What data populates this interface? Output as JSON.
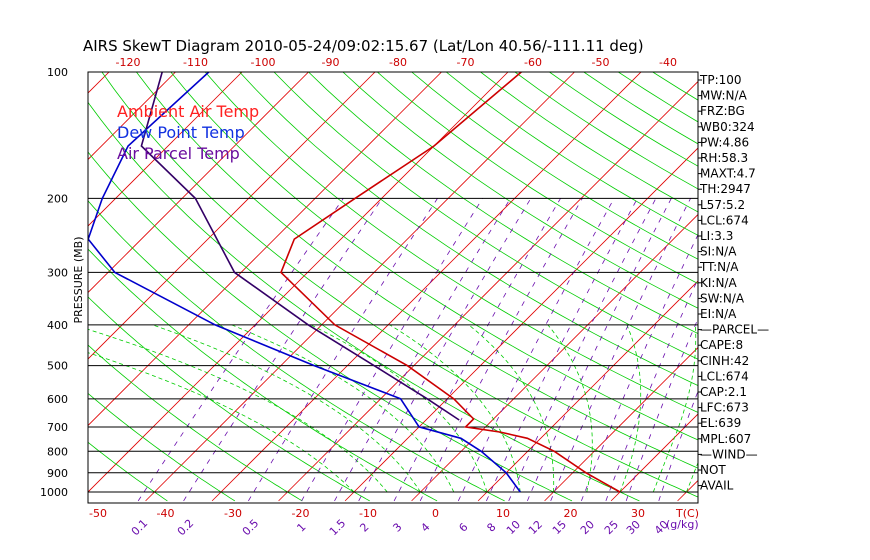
{
  "chart_data": {
    "type": "line",
    "title": "AIRS SkewT Diagram 2010-05-24/09:02:15.67 (Lat/Lon 40.56/-111.11 deg)",
    "ylabel": "PRESSURE (MB)",
    "xlabel": "T(C)",
    "mixing_ratio_label": "(g/kg)",
    "pressure_ticks": [
      "100",
      "200",
      "300",
      "400",
      "500",
      "600",
      "700",
      "800",
      "900",
      "1000"
    ],
    "pressure_levels": [
      100,
      200,
      300,
      400,
      500,
      600,
      700,
      800,
      900,
      1000
    ],
    "top_temp_ticks": [
      "-120",
      "-110",
      "-100",
      "-90",
      "-80",
      "-70",
      "-60",
      "-50",
      "-40"
    ],
    "bottom_temp_ticks": [
      "-50",
      "-40",
      "-30",
      "-20",
      "-10",
      "0",
      "10",
      "20",
      "30"
    ],
    "mixing_ratio_ticks": [
      "0.1",
      "0.2",
      "0.5",
      "1",
      "1.5",
      "2",
      "3",
      "4",
      "6",
      "8",
      "10",
      "12",
      "15",
      "20",
      "25",
      "30",
      "40"
    ],
    "legend": [
      {
        "name": "Ambient Air Temp",
        "color": "#ff2020"
      },
      {
        "name": "Dew Point Temp",
        "color": "#1030e0"
      },
      {
        "name": "Air Parcel Temp",
        "color": "#6a0d9e"
      }
    ],
    "series": [
      {
        "name": "Ambient Air Temp",
        "color": "#cc0000",
        "points": [
          [
            100,
            -48
          ],
          [
            150,
            -50
          ],
          [
            200,
            -54
          ],
          [
            250,
            -57
          ],
          [
            300,
            -54
          ],
          [
            400,
            -38
          ],
          [
            500,
            -21
          ],
          [
            600,
            -9
          ],
          [
            670,
            -3
          ],
          [
            700,
            -3
          ],
          [
            720,
            3
          ],
          [
            730,
            5
          ],
          [
            745,
            8
          ],
          [
            800,
            14
          ],
          [
            900,
            22
          ],
          [
            1000,
            30
          ]
        ]
      },
      {
        "name": "Dew Point Temp",
        "color": "#0000cc",
        "points": [
          [
            100,
            -95
          ],
          [
            150,
            -96
          ],
          [
            200,
            -92
          ],
          [
            250,
            -88
          ],
          [
            300,
            -79
          ],
          [
            400,
            -56
          ],
          [
            500,
            -35
          ],
          [
            600,
            -17
          ],
          [
            700,
            -10
          ],
          [
            745,
            -2
          ],
          [
            800,
            3
          ],
          [
            900,
            10
          ],
          [
            1000,
            15
          ]
        ]
      },
      {
        "name": "Air Parcel Temp",
        "color": "#330066",
        "points": [
          [
            100,
            -102
          ],
          [
            150,
            -94
          ],
          [
            200,
            -78
          ],
          [
            300,
            -61
          ],
          [
            400,
            -42
          ],
          [
            500,
            -26
          ],
          [
            600,
            -13
          ],
          [
            674,
            -5
          ]
        ]
      }
    ],
    "indices": [
      "TP:100",
      "MW:N/A",
      "FRZ:BG",
      "WB0:324",
      "PW:4.86",
      "RH:58.3",
      "MAXT:4.7",
      "TH:2947",
      "L57:5.2",
      "LCL:674",
      "LI:3.3",
      "SI:N/A",
      "TT:N/A",
      "KI:N/A",
      "SW:N/A",
      "EI:N/A",
      "—PARCEL—",
      "CAPE:8",
      "CINH:42",
      "LCL:674",
      "CAP:2.1",
      "LFC:673",
      "EL:639",
      "MPL:607",
      "—WIND—",
      "NOT",
      "AVAIL"
    ],
    "colors": {
      "isotherm": "#e00000",
      "dry_adiabat": "#00cc00",
      "moist_adiabat": "#00cc00",
      "mixing_ratio": "#6a0dad",
      "isobar": "#000000",
      "top_ticks": "#cc0000",
      "bottom_ticks": "#cc0000",
      "mixing_ticks": "#6a0dad"
    }
  }
}
